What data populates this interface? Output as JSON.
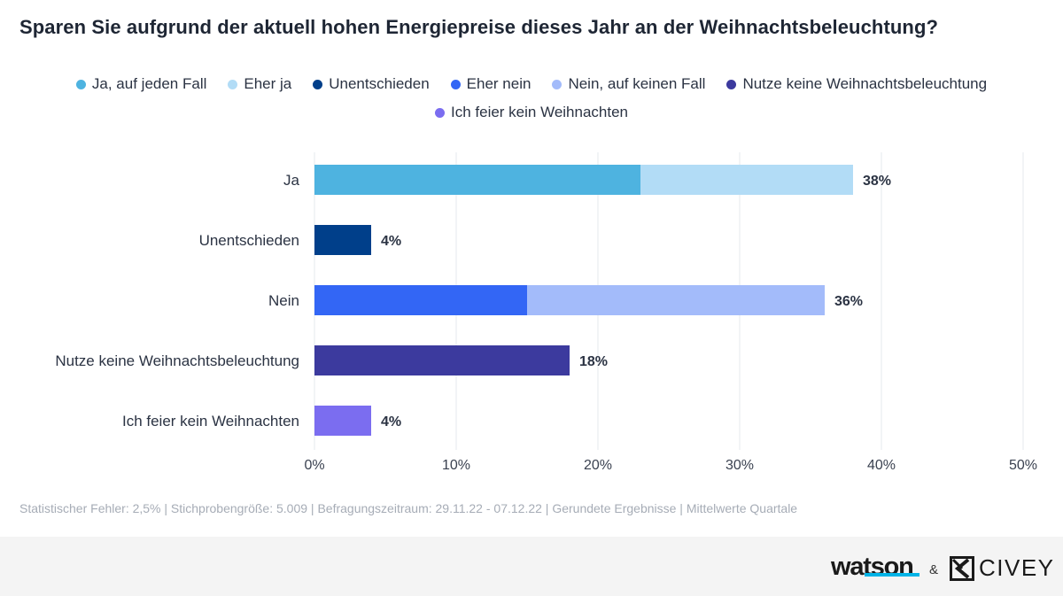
{
  "title": "Sparen Sie aufgrund der aktuell hohen Energiepreise dieses Jahr an der Weihnachtsbeleuchtung?",
  "legend": [
    {
      "label": "Ja, auf jeden Fall",
      "color": "#4eb3e0"
    },
    {
      "label": "Eher ja",
      "color": "#b2dcf6"
    },
    {
      "label": "Unentschieden",
      "color": "#003f8a"
    },
    {
      "label": "Eher nein",
      "color": "#3366f5"
    },
    {
      "label": "Nein, auf keinen Fall",
      "color": "#a3bbfa"
    },
    {
      "label": "Nutze keine Weihnachtsbeleuchtung",
      "color": "#3c3a9e"
    },
    {
      "label": "Ich feier kein Weihnachten",
      "color": "#7b6df0"
    }
  ],
  "chart_data": {
    "type": "bar",
    "orientation": "horizontal",
    "stacked": true,
    "title": "Sparen Sie aufgrund der aktuell hohen Energiepreise dieses Jahr an der Weihnachtsbeleuchtung?",
    "categories": [
      "Ja",
      "Unentschieden",
      "Nein",
      "Nutze keine Weihnachtsbeleuchtung",
      "Ich feier kein Weihnachten"
    ],
    "series": [
      {
        "name": "Ja, auf jeden Fall",
        "color": "#4eb3e0",
        "values": [
          23,
          0,
          0,
          0,
          0
        ]
      },
      {
        "name": "Eher ja",
        "color": "#b2dcf6",
        "values": [
          15,
          0,
          0,
          0,
          0
        ]
      },
      {
        "name": "Unentschieden",
        "color": "#003f8a",
        "values": [
          0,
          4,
          0,
          0,
          0
        ]
      },
      {
        "name": "Eher nein",
        "color": "#3366f5",
        "values": [
          0,
          0,
          15,
          0,
          0
        ]
      },
      {
        "name": "Nein, auf keinen Fall",
        "color": "#a3bbfa",
        "values": [
          0,
          0,
          21,
          0,
          0
        ]
      },
      {
        "name": "Nutze keine Weihnachtsbeleuchtung",
        "color": "#3c3a9e",
        "values": [
          0,
          0,
          0,
          18,
          0
        ]
      },
      {
        "name": "Ich feier kein Weihnachten",
        "color": "#7b6df0",
        "values": [
          0,
          0,
          0,
          0,
          4
        ]
      }
    ],
    "totals": [
      38,
      4,
      36,
      18,
      4
    ],
    "total_labels": [
      "38%",
      "4%",
      "36%",
      "18%",
      "4%"
    ],
    "xlim": [
      0,
      50
    ],
    "xticks": [
      0,
      10,
      20,
      30,
      40,
      50
    ],
    "xtick_labels": [
      "0%",
      "10%",
      "20%",
      "30%",
      "40%",
      "50%"
    ],
    "xlabel": "",
    "ylabel": "",
    "grid": true,
    "legend_position": "top"
  },
  "footnote": "Statistischer Fehler: 2,5% | Stichprobengröße: 5.009 | Befragungszeitraum: 29.11.22 - 07.12.22 | Gerundete Ergebnisse | Mittelwerte Quartale",
  "footer": {
    "watson": "watson",
    "amp": "&",
    "civey": "CIVEY"
  }
}
